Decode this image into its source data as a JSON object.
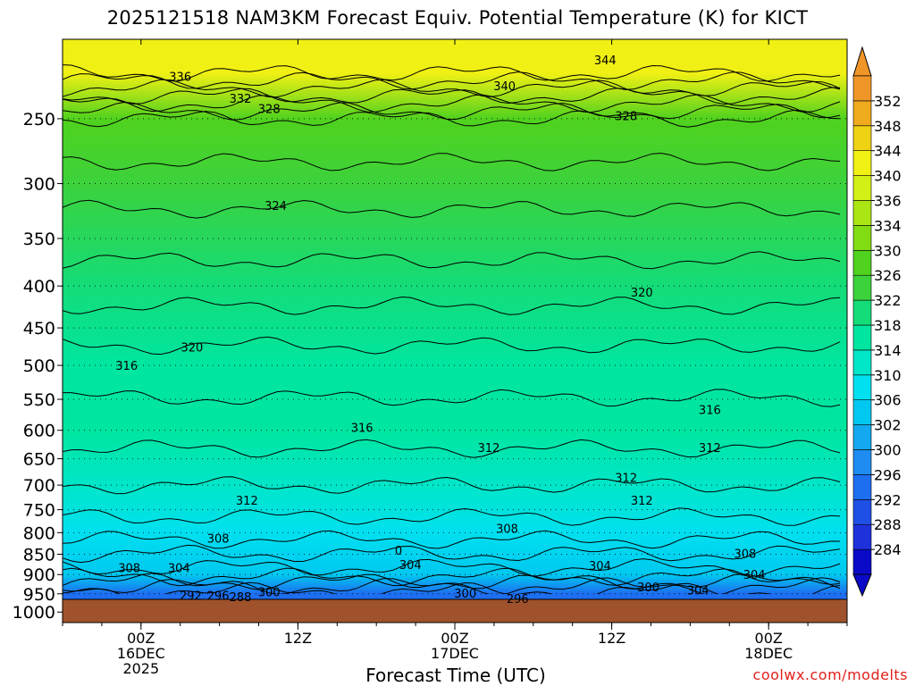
{
  "title": "2025121518 NAM3KM Forecast Equiv. Potential Temperature (K) for KICT",
  "credit": "coolwx.com/modelts",
  "chart_data": {
    "type": "heatmap",
    "title": "2025121518 NAM3KM Forecast Equiv. Potential Temperature (K) for KICT",
    "xlabel": "Forecast Time (UTC)",
    "ylabel": "",
    "x_ticks": [
      {
        "lines": [
          "00Z",
          "16DEC",
          "2025"
        ],
        "hour": 6
      },
      {
        "lines": [
          "12Z"
        ],
        "hour": 18
      },
      {
        "lines": [
          "00Z",
          "17DEC"
        ],
        "hour": 30
      },
      {
        "lines": [
          "12Z"
        ],
        "hour": 42
      },
      {
        "lines": [
          "00Z",
          "18DEC"
        ],
        "hour": 54
      }
    ],
    "xlim": [
      0,
      60
    ],
    "y_ticks": [
      250,
      300,
      350,
      400,
      450,
      500,
      550,
      600,
      650,
      700,
      750,
      800,
      850,
      900,
      950,
      1000
    ],
    "ylim": [
      1030,
      200
    ],
    "y_scale": "log",
    "grid": true,
    "ground_pressure": 965,
    "colorbar": {
      "labels": [
        284,
        288,
        292,
        296,
        300,
        302,
        306,
        310,
        314,
        318,
        322,
        326,
        330,
        334,
        336,
        340,
        344,
        348,
        352
      ],
      "colors": [
        "#0a0ac8",
        "#1e32dc",
        "#1e50e6",
        "#1e6ef0",
        "#1e8cf0",
        "#14a8f0",
        "#00c8f0",
        "#00e0f0",
        "#00e6c8",
        "#00e6a0",
        "#14dc78",
        "#3cd23c",
        "#50d21e",
        "#82dc14",
        "#aae614",
        "#d2f014",
        "#f0f014",
        "#f0d214",
        "#f0aa1e",
        "#f09628"
      ]
    },
    "approx_theta_e_profile": [
      {
        "pressure": 220,
        "value": 340
      },
      {
        "pressure": 250,
        "value": 328
      },
      {
        "pressure": 300,
        "value": 325
      },
      {
        "pressure": 400,
        "value": 321
      },
      {
        "pressure": 500,
        "value": 317
      },
      {
        "pressure": 600,
        "value": 315
      },
      {
        "pressure": 700,
        "value": 312
      },
      {
        "pressure": 800,
        "value": 309
      },
      {
        "pressure": 900,
        "value": 303
      },
      {
        "pressure": 950,
        "value": 295
      }
    ],
    "contour_labels": [
      {
        "text": "344",
        "hour": 41.5,
        "p": 212
      },
      {
        "text": "336",
        "hour": 9.0,
        "p": 222
      },
      {
        "text": "340",
        "hour": 33.8,
        "p": 228
      },
      {
        "text": "332",
        "hour": 13.6,
        "p": 236
      },
      {
        "text": "328",
        "hour": 15.8,
        "p": 243
      },
      {
        "text": "328",
        "hour": 43.1,
        "p": 248
      },
      {
        "text": "324",
        "hour": 16.3,
        "p": 319
      },
      {
        "text": "320",
        "hour": 44.3,
        "p": 407
      },
      {
        "text": "320",
        "hour": 9.9,
        "p": 475
      },
      {
        "text": "316",
        "hour": 4.9,
        "p": 500
      },
      {
        "text": "316",
        "hour": 49.5,
        "p": 566
      },
      {
        "text": "316",
        "hour": 22.9,
        "p": 595
      },
      {
        "text": "312",
        "hour": 32.6,
        "p": 630
      },
      {
        "text": "312",
        "hour": 49.5,
        "p": 630
      },
      {
        "text": "312",
        "hour": 43.1,
        "p": 685
      },
      {
        "text": "312",
        "hour": 14.1,
        "p": 730
      },
      {
        "text": "312",
        "hour": 44.3,
        "p": 730
      },
      {
        "text": "308",
        "hour": 34.0,
        "p": 790
      },
      {
        "text": "308",
        "hour": 11.9,
        "p": 812
      },
      {
        "text": "0",
        "hour": 25.7,
        "p": 840
      },
      {
        "text": "308",
        "hour": 52.2,
        "p": 848
      },
      {
        "text": "304",
        "hour": 26.6,
        "p": 875
      },
      {
        "text": "304",
        "hour": 41.1,
        "p": 877
      },
      {
        "text": "308",
        "hour": 5.1,
        "p": 883
      },
      {
        "text": "304",
        "hour": 8.9,
        "p": 883
      },
      {
        "text": "304",
        "hour": 52.9,
        "p": 900
      },
      {
        "text": "300",
        "hour": 44.8,
        "p": 932
      },
      {
        "text": "304",
        "hour": 48.6,
        "p": 940
      },
      {
        "text": "300",
        "hour": 15.8,
        "p": 944
      },
      {
        "text": "300",
        "hour": 30.8,
        "p": 948
      },
      {
        "text": "292",
        "hour": 9.8,
        "p": 954
      },
      {
        "text": "296",
        "hour": 11.9,
        "p": 954
      },
      {
        "text": "288",
        "hour": 13.6,
        "p": 958
      },
      {
        "text": "296",
        "hour": 34.8,
        "p": 962
      }
    ]
  }
}
